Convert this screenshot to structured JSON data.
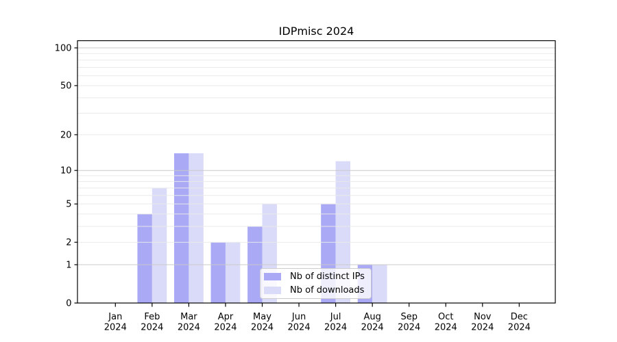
{
  "chart_data": {
    "type": "bar",
    "title": "IDPmisc 2024",
    "categories": [
      "Jan 2024",
      "Feb 2024",
      "Mar 2024",
      "Apr 2024",
      "May 2024",
      "Jun 2024",
      "Jul 2024",
      "Aug 2024",
      "Sep 2024",
      "Oct 2024",
      "Nov 2024",
      "Dec 2024"
    ],
    "series": [
      {
        "name": "Nb of distinct IPs",
        "color": "#a9a9f5",
        "values": [
          0,
          4,
          14,
          2,
          3,
          0,
          5,
          1,
          0,
          0,
          0,
          0
        ]
      },
      {
        "name": "Nb of downloads",
        "color": "#dadaf9",
        "values": [
          0,
          7,
          14,
          2,
          5,
          0,
          12,
          1,
          0,
          0,
          0,
          0
        ]
      }
    ],
    "xlabel": "",
    "ylabel": "",
    "yscale": "log1p",
    "ylim": [
      0,
      114
    ],
    "yticks_labeled": [
      0,
      1,
      2,
      5,
      10,
      20,
      50,
      100
    ],
    "yticks_decade": [
      1,
      10,
      100
    ],
    "yticks_minor": [
      3,
      4,
      6,
      7,
      8,
      9,
      30,
      40,
      60,
      70,
      80,
      90
    ],
    "grid": true,
    "legend_position": "lower center"
  },
  "colors": {
    "bar_distinct_ips": "#a9a9f5",
    "bar_downloads": "#dadaf9",
    "grid_decade": "#c9c9c9",
    "grid_minor": "#e9e9e9",
    "axis": "#000000",
    "legend_border": "#cccccc",
    "legend_background": "rgba(255,255,255,0.8)",
    "text": "#000000"
  }
}
